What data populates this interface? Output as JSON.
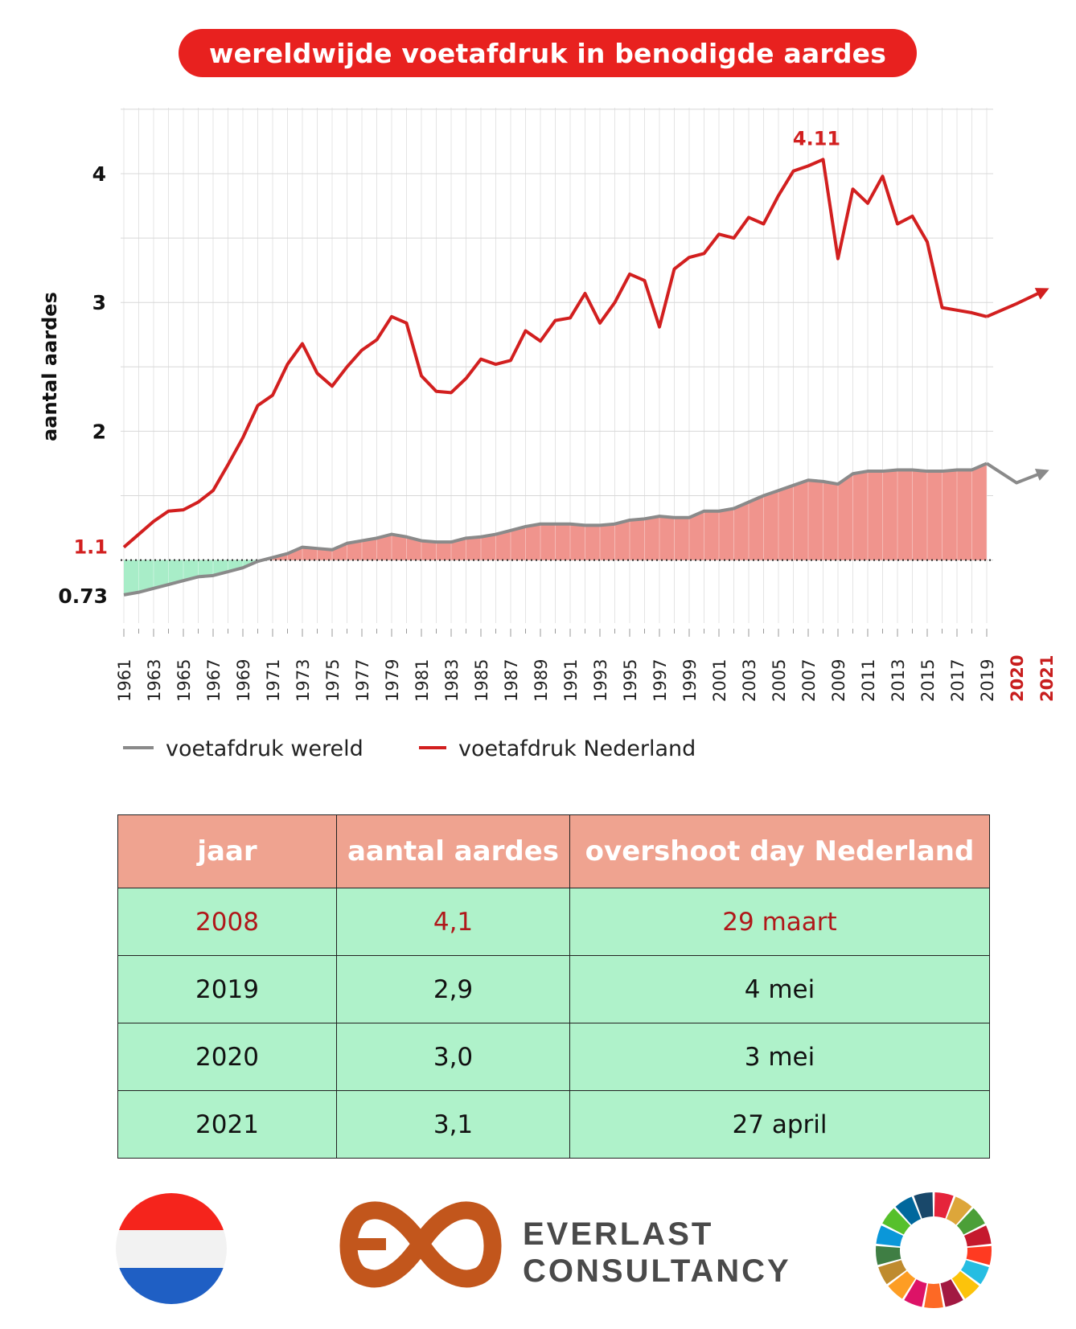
{
  "title": "wereldwijde voetafdruk in benodigde aardes",
  "colors": {
    "world": "#8a8a8a",
    "netherlands": "#d21f1f",
    "fill_deficit": "#f0948d",
    "fill_surplus": "#a8edc8",
    "table_header": "#efa390",
    "table_body": "#aff2ca",
    "highlight_text": "#b0181a"
  },
  "chart_data": {
    "type": "line",
    "ylabel": "aantal aardes",
    "yticks": [
      "4",
      "3",
      "2"
    ],
    "ylim": [
      0.5,
      4.5
    ],
    "xlim": [
      1961,
      2021
    ],
    "xticks": [
      "1961",
      "1963",
      "1965",
      "1967",
      "1969",
      "1971",
      "1973",
      "1975",
      "1977",
      "1979",
      "1981",
      "1983",
      "1985",
      "1987",
      "1989",
      "1991",
      "1993",
      "1995",
      "1997",
      "1999",
      "2001",
      "2003",
      "2005",
      "2007",
      "2009",
      "2011",
      "2013",
      "2015",
      "2017",
      "2019",
      "2020",
      "2021"
    ],
    "xticks_highlight": [
      "2020",
      "2021"
    ],
    "reference_line": 1,
    "annotations": [
      {
        "text": "1.1",
        "x": 1961,
        "y": 1.1,
        "color": "netherlands"
      },
      {
        "text": "0.73",
        "x": 1961,
        "y": 0.73,
        "color": "dark"
      },
      {
        "text": "4.11",
        "x": 2008,
        "y": 4.11,
        "color": "netherlands"
      }
    ],
    "series": [
      {
        "name": "voetafdruk wereld",
        "color": "#8a8a8a",
        "x": [
          1961,
          1962,
          1963,
          1964,
          1965,
          1966,
          1967,
          1968,
          1969,
          1970,
          1971,
          1972,
          1973,
          1974,
          1975,
          1976,
          1977,
          1978,
          1979,
          1980,
          1981,
          1982,
          1983,
          1984,
          1985,
          1986,
          1987,
          1988,
          1989,
          1990,
          1991,
          1992,
          1993,
          1994,
          1995,
          1996,
          1997,
          1998,
          1999,
          2000,
          2001,
          2002,
          2003,
          2004,
          2005,
          2006,
          2007,
          2008,
          2009,
          2010,
          2011,
          2012,
          2013,
          2014,
          2015,
          2016,
          2017,
          2018,
          2019,
          2020,
          2021
        ],
        "y": [
          0.73,
          0.75,
          0.78,
          0.81,
          0.84,
          0.87,
          0.88,
          0.91,
          0.94,
          0.99,
          1.02,
          1.05,
          1.1,
          1.09,
          1.08,
          1.13,
          1.15,
          1.17,
          1.2,
          1.18,
          1.15,
          1.14,
          1.14,
          1.17,
          1.18,
          1.2,
          1.23,
          1.26,
          1.28,
          1.28,
          1.28,
          1.27,
          1.27,
          1.28,
          1.31,
          1.32,
          1.34,
          1.33,
          1.33,
          1.38,
          1.38,
          1.4,
          1.45,
          1.5,
          1.54,
          1.58,
          1.62,
          1.61,
          1.59,
          1.67,
          1.69,
          1.69,
          1.7,
          1.7,
          1.69,
          1.69,
          1.7,
          1.7,
          1.75,
          1.6,
          1.69
        ]
      },
      {
        "name": "voetafdruk Nederland",
        "color": "#d21f1f",
        "x": [
          1961,
          1962,
          1963,
          1964,
          1965,
          1966,
          1967,
          1968,
          1969,
          1970,
          1971,
          1972,
          1973,
          1974,
          1975,
          1976,
          1977,
          1978,
          1979,
          1980,
          1981,
          1982,
          1983,
          1984,
          1985,
          1986,
          1987,
          1988,
          1989,
          1990,
          1991,
          1992,
          1993,
          1994,
          1995,
          1996,
          1997,
          1998,
          1999,
          2000,
          2001,
          2002,
          2003,
          2004,
          2005,
          2006,
          2007,
          2008,
          2009,
          2010,
          2011,
          2012,
          2013,
          2014,
          2015,
          2016,
          2017,
          2018,
          2019,
          2020,
          2021
        ],
        "y": [
          1.1,
          1.2,
          1.3,
          1.38,
          1.39,
          1.45,
          1.54,
          1.74,
          1.95,
          2.2,
          2.28,
          2.52,
          2.68,
          2.45,
          2.35,
          2.5,
          2.63,
          2.71,
          2.89,
          2.84,
          2.43,
          2.31,
          2.3,
          2.41,
          2.56,
          2.52,
          2.55,
          2.78,
          2.7,
          2.86,
          2.88,
          3.07,
          2.84,
          3.0,
          3.22,
          3.17,
          2.81,
          3.26,
          3.35,
          3.38,
          3.53,
          3.5,
          3.66,
          3.61,
          3.83,
          4.02,
          4.06,
          4.11,
          3.34,
          3.88,
          3.77,
          3.98,
          3.61,
          3.67,
          3.47,
          2.96,
          2.94,
          2.92,
          2.89,
          2.99,
          3.1
        ]
      }
    ]
  },
  "legend": [
    {
      "label": "voetafdruk wereld"
    },
    {
      "label": "voetafdruk Nederland"
    }
  ],
  "table": {
    "headers": [
      "jaar",
      "aantal aardes",
      "overshoot day Nederland"
    ],
    "rows": [
      {
        "year": "2008",
        "earths": "4,1",
        "date": "29 maart"
      },
      {
        "year": "2019",
        "earths": "2,9",
        "date": "4 mei"
      },
      {
        "year": "2020",
        "earths": "3,0",
        "date": "3 mei"
      },
      {
        "year": "2021",
        "earths": "3,1",
        "date": "27 april"
      }
    ]
  },
  "logo": {
    "line1": "EVERLAST",
    "line2": "CONSULTANCY"
  }
}
